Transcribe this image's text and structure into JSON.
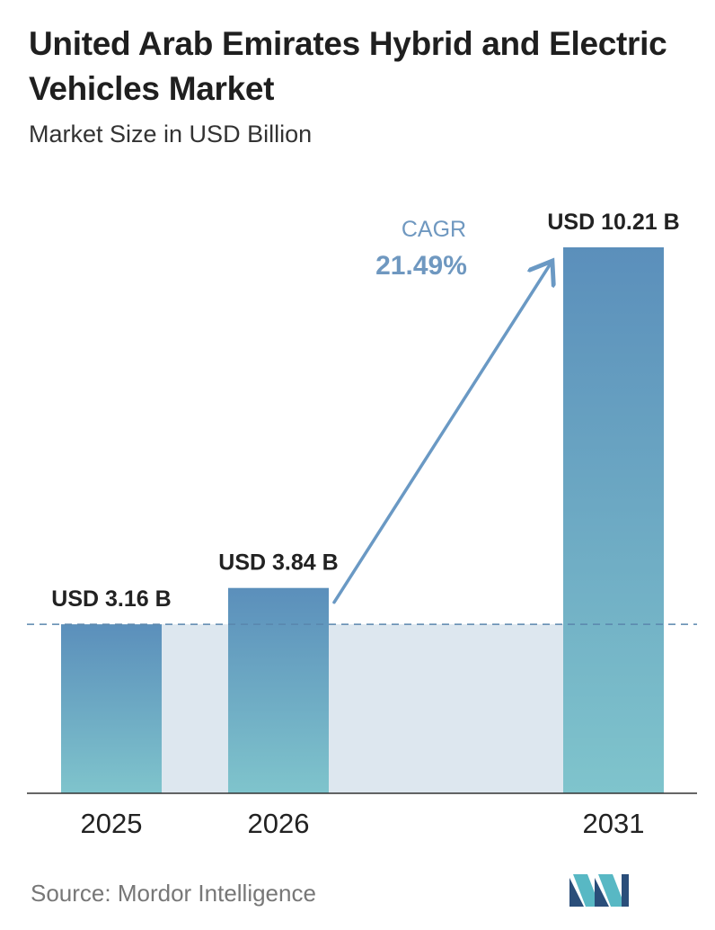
{
  "title": "United Arab Emirates Hybrid and Electric Vehicles Market",
  "subtitle": "Market Size in USD Billion",
  "source": "Source: Mordor Intelligence",
  "cagr": {
    "label": "CAGR",
    "value": "21.49%"
  },
  "colors": {
    "bar_top": "#5b8fbb",
    "bar_bottom": "#7fc4cc",
    "band": "#dde7ef",
    "cagr_text": "#6f98c0",
    "arrow": "#6a99c4",
    "dashed_line": "#5a86ad",
    "axis": "#333333"
  },
  "chart_data": {
    "type": "bar",
    "categories": [
      "2025",
      "2026",
      "2031"
    ],
    "values": [
      3.16,
      3.84,
      10.21
    ],
    "value_labels": [
      "USD 3.16 B",
      "USD 3.84 B",
      "USD 10.21 B"
    ],
    "unit": "USD Billion",
    "ylim": [
      0,
      10.21
    ],
    "grid": false,
    "legend": "none"
  }
}
